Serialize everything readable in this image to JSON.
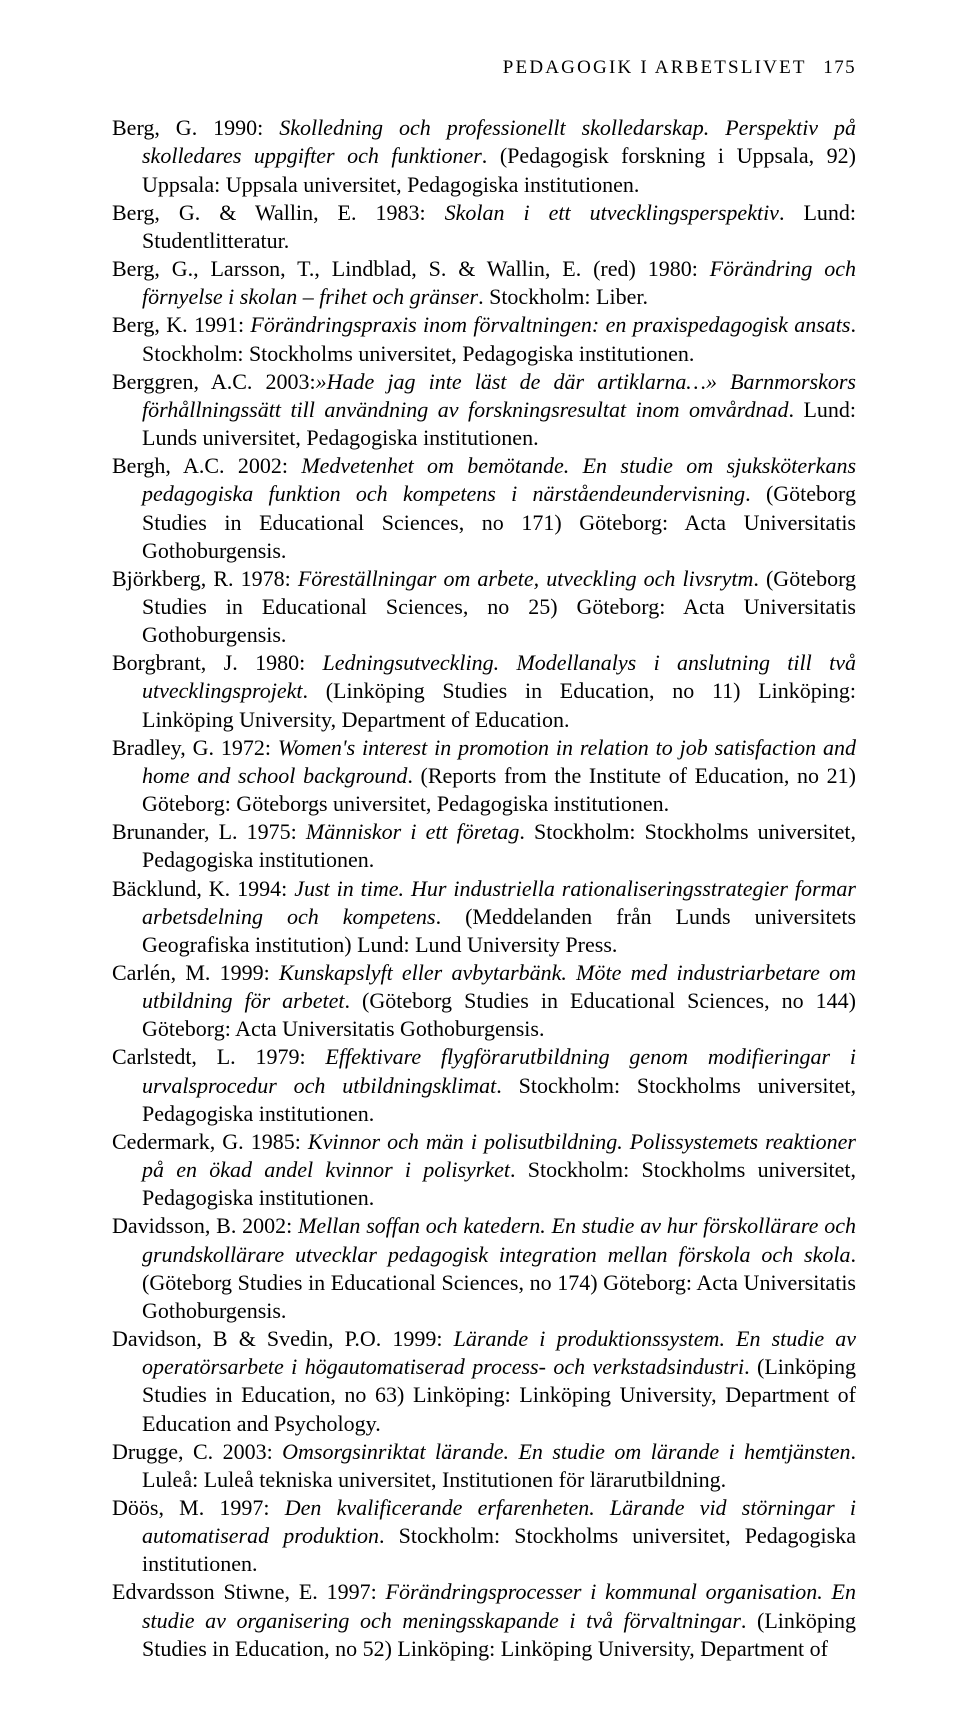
{
  "header": {
    "running_title": "PEDAGOGIK I ARBETSLIVET",
    "page_number": "175"
  },
  "references": [
    {
      "html": "Berg, G. 1990: <em>Skolledning och professionellt skolledarskap. Perspektiv på skolledares uppgifter och funktioner</em>. (Pedagogisk forskning i Uppsala, 92) Uppsala: Uppsala universitet, Pedagogiska institutionen."
    },
    {
      "html": "Berg, G. &amp; Wallin, E. 1983: <em>Skolan i ett utvecklingsperspektiv</em>. Lund: Studentlitteratur."
    },
    {
      "html": "Berg, G., Larsson, T., Lindblad, S. &amp; Wallin, E. (red) 1980: <em>Förändring och förnyelse i skolan – frihet och gränser</em>. Stockholm: Liber."
    },
    {
      "html": "Berg, K. 1991: <em>Förändringspraxis inom förvaltningen: en praxispedagogisk ansats</em>. Stockholm: Stockholms universitet, Pedagogiska institutionen."
    },
    {
      "html": "Berggren, A.C. 2003:<em>»Hade jag inte läst de där artiklarna…» Barnmorskors förhållningssätt till användning av forskningsresultat inom omvårdnad</em>. Lund: Lunds universitet, Pedagogiska institutionen."
    },
    {
      "html": "Bergh, A.C. 2002: <em>Medvetenhet om bemötande. En studie om sjuksköterkans pedagogiska funktion och kompetens i närståendeundervisning</em>. (Göteborg Studies in Educational Sciences, no 171) Göteborg: Acta Universitatis Gothoburgensis."
    },
    {
      "html": "Björkberg, R. 1978: <em>Föreställningar om arbete, utveckling och livsrytm</em>. (Göteborg Studies in Educational Sciences, no 25) Göteborg: Acta Universitatis Gothoburgensis."
    },
    {
      "html": "Borgbrant, J. 1980: <em>Ledningsutveckling. Modellanalys i anslutning till två utvecklingsprojekt</em>. (Linköping Studies in Education, no 11) Linköping: Linköping University, Department of Education."
    },
    {
      "html": "Bradley, G. 1972: <em>Women's interest in promotion in relation to job satisfaction and home and school background</em>. (Reports from the Institute of Education, no 21) Göteborg: Göteborgs universitet, Pedagogiska institutionen."
    },
    {
      "html": "Brunander, L. 1975: <em>Människor i ett företag</em>. Stockholm: Stockholms universitet, Pedagogiska institutionen."
    },
    {
      "html": "Bäcklund, K. 1994: <em>Just in time. Hur industriella rationaliseringsstrategier formar arbetsdelning och kompetens</em>. (Meddelanden från Lunds universitets Geografiska institution) Lund: Lund University Press."
    },
    {
      "html": "Carlén, M. 1999: <em>Kunskapslyft eller avbytarbänk. Möte med industriarbetare om utbildning för arbetet</em>. (Göteborg Studies in Educational Sciences, no 144) Göteborg: Acta Universitatis Gothoburgensis."
    },
    {
      "html": "Carlstedt, L. 1979: <em>Effektivare flygförarutbildning genom modifieringar i urvalsprocedur och utbildningsklimat</em>. Stockholm: Stockholms universitet, Pedagogiska institutionen."
    },
    {
      "html": "Cedermark, G. 1985: <em>Kvinnor och män i polisutbildning. Polissystemets reaktioner på en ökad andel kvinnor i polisyrket</em>. Stockholm: Stockholms universitet, Pedagogiska institutionen."
    },
    {
      "html": "Davidsson, B. 2002: <em>Mellan soffan och katedern. En studie av hur förskollärare och grundskollärare utvecklar pedagogisk integration mellan förskola och skola</em>. (Göteborg Studies in Educational Sciences, no 174) Göteborg: Acta Universitatis Gothoburgensis."
    },
    {
      "html": "Davidson, B &amp; Svedin, P.O. 1999: <em>Lärande i produktionssystem. En studie av operatörsarbete i högautomatiserad process- och verkstadsindustri</em>. (Linköping Studies in Education, no 63) Linköping: Linköping University, Department of Education and Psychology."
    },
    {
      "html": "Drugge, C. 2003: <em>Omsorgsinriktat lärande. En studie om lärande i hemtjänsten</em>. Luleå: Luleå tekniska universitet, Institutionen för lärarutbildning."
    },
    {
      "html": "Döös, M. 1997: <em>Den kvalificerande erfarenheten. Lärande vid störningar i automatiserad produktion</em>. Stockholm: Stockholms universitet, Pedagogiska institutionen."
    },
    {
      "html": "Edvardsson Stiwne, E. 1997: <em>Förändringsprocesser i kommunal organisation. En studie av organisering och meningsskapande i två förvaltningar</em>. (Linköping Studies in Education, no 52) Linköping: Linköping University, Department of"
    }
  ]
}
